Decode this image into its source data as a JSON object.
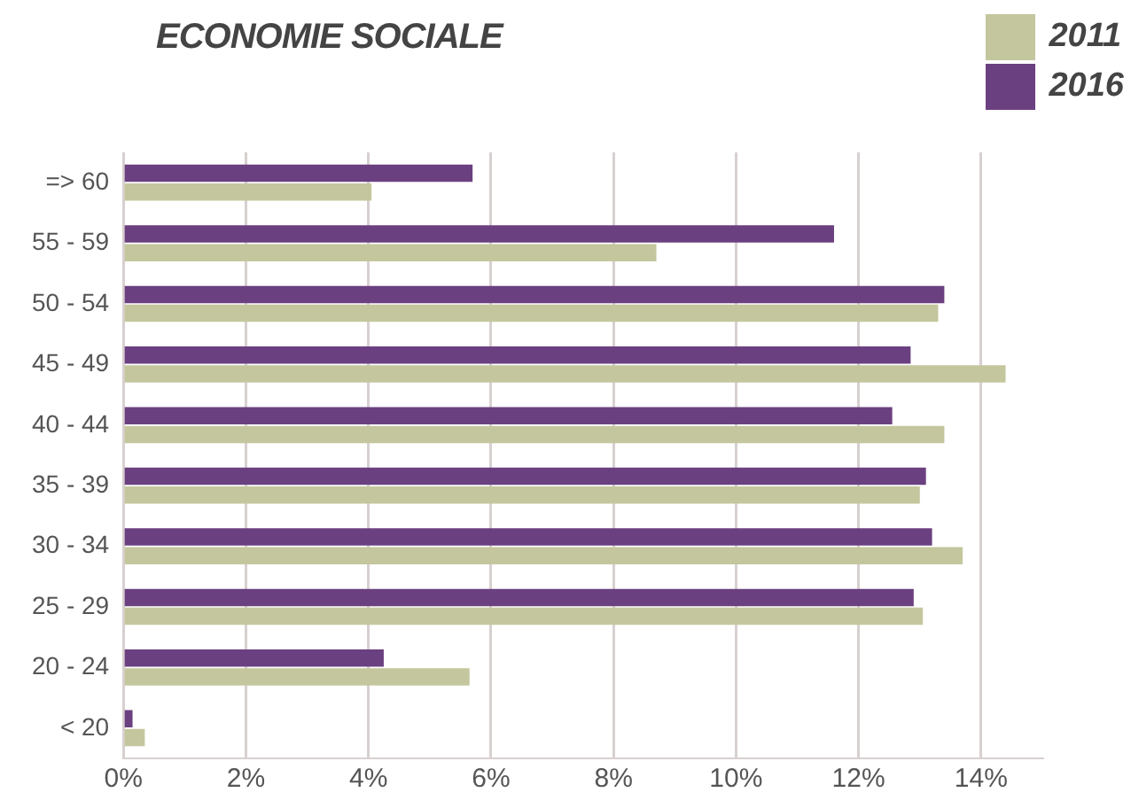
{
  "chart_data": {
    "type": "bar",
    "orientation": "horizontal",
    "title": "ECONOMIE SOCIALE",
    "categories": [
      "=> 60",
      "55 - 59",
      "50 - 54",
      "45 - 49",
      "40 - 44",
      "35 - 39",
      "30 - 34",
      "25 - 29",
      "20 - 24",
      "< 20"
    ],
    "series": [
      {
        "name": "2011",
        "color": "#c4c79e",
        "values": [
          4.05,
          8.7,
          13.3,
          14.4,
          13.4,
          13.0,
          13.7,
          13.05,
          5.65,
          0.35
        ]
      },
      {
        "name": "2016",
        "color": "#6b4080",
        "values": [
          5.7,
          11.6,
          13.4,
          12.85,
          12.55,
          13.1,
          13.2,
          12.9,
          4.25,
          0.15
        ]
      }
    ],
    "xlim": [
      0,
      15
    ],
    "xticks": [
      {
        "value": 0,
        "label": "0%"
      },
      {
        "value": 2,
        "label": "2%"
      },
      {
        "value": 4,
        "label": "4%"
      },
      {
        "value": 6,
        "label": "6%"
      },
      {
        "value": 8,
        "label": "8%"
      },
      {
        "value": 10,
        "label": "10%"
      },
      {
        "value": 12,
        "label": "12%"
      },
      {
        "value": 14,
        "label": "14%"
      }
    ],
    "grid": "x",
    "legend": "top right"
  }
}
